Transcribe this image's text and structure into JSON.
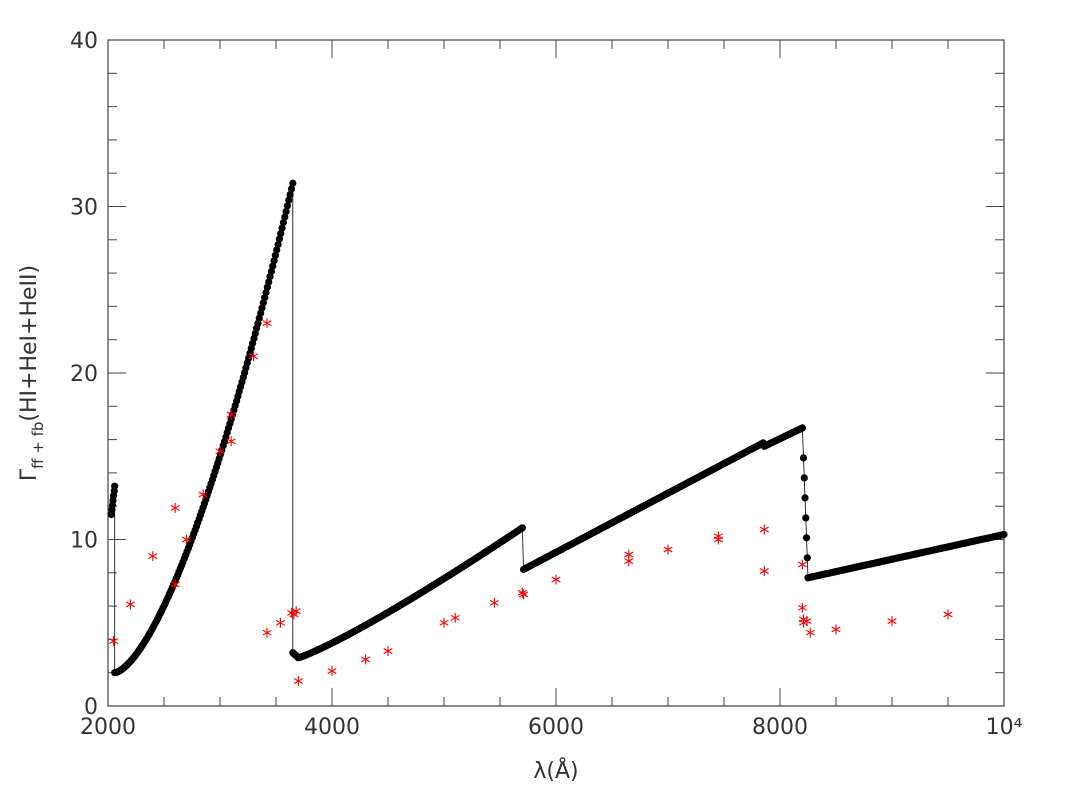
{
  "chart_data": {
    "type": "scatter",
    "title": "",
    "xlabel": "λ(Å)",
    "ylabel": "Γ_ff + fb(HI+HeI+HeII)",
    "ylabel_main": "Γ",
    "ylabel_sub": "ff + fb",
    "ylabel_rest": "(HI+HeI+HeII)",
    "xlim": [
      2000,
      10000
    ],
    "ylim": [
      0,
      40
    ],
    "grid": false,
    "x_ticks": [
      {
        "value": 2000,
        "label": "2000"
      },
      {
        "value": 4000,
        "label": "4000"
      },
      {
        "value": 6000,
        "label": "6000"
      },
      {
        "value": 8000,
        "label": "8000"
      },
      {
        "value": 10000,
        "label": "10⁴"
      }
    ],
    "y_ticks": [
      {
        "value": 0,
        "label": "0"
      },
      {
        "value": 10,
        "label": "10"
      },
      {
        "value": 20,
        "label": "20"
      },
      {
        "value": 30,
        "label": "30"
      },
      {
        "value": 40,
        "label": "40"
      }
    ],
    "colors": {
      "model": "#000000",
      "stars": "#ff0000",
      "axis": "#444444"
    },
    "series": [
      {
        "marker": "filled-circle-with-line",
        "segments": [
          {
            "x_start": 2030,
            "x_end": 2060,
            "y_start": 11.5,
            "y_end": 13.2,
            "power": 1
          },
          {
            "x_start": 2060,
            "x_end": 3650,
            "y_start": 2.0,
            "y_end": 31.4,
            "power": 1.55
          },
          {
            "x_start": 3650,
            "x_end": 3700,
            "y_start": 3.2,
            "y_end": 2.9,
            "power": 1
          },
          {
            "x_start": 3700,
            "x_end": 5700,
            "y_start": 2.9,
            "y_end": 10.7,
            "power": 1.15
          },
          {
            "x_start": 5710,
            "x_end": 7850,
            "y_start": 8.2,
            "y_end": 15.8,
            "power": 1
          },
          {
            "x_start": 7860,
            "x_end": 8200,
            "y_start": 15.6,
            "y_end": 16.7,
            "power": 1
          },
          {
            "x_start": 8210,
            "x_end": 8250,
            "y_start": 14.9,
            "y_end": 7.7,
            "power": 1
          },
          {
            "x_start": 8250,
            "x_end": 10000,
            "y_start": 7.7,
            "y_end": 10.3,
            "power": 1
          }
        ]
      },
      {
        "marker": "star",
        "points": [
          [
            2050,
            3.9
          ],
          [
            2200,
            6.1
          ],
          [
            2400,
            9.0
          ],
          [
            2600,
            7.3
          ],
          [
            2600,
            11.9
          ],
          [
            2700,
            10.0
          ],
          [
            2850,
            12.7
          ],
          [
            3000,
            15.3
          ],
          [
            3100,
            15.9
          ],
          [
            3100,
            17.5
          ],
          [
            3300,
            21.0
          ],
          [
            3420,
            23.0
          ],
          [
            3420,
            4.4
          ],
          [
            3540,
            5.0
          ],
          [
            3640,
            5.6
          ],
          [
            3660,
            5.5
          ],
          [
            3680,
            5.7
          ],
          [
            3700,
            1.5
          ],
          [
            4000,
            2.1
          ],
          [
            4300,
            2.8
          ],
          [
            4500,
            3.3
          ],
          [
            5000,
            5.0
          ],
          [
            5100,
            5.3
          ],
          [
            5450,
            6.2
          ],
          [
            5700,
            6.8
          ],
          [
            5710,
            6.7
          ],
          [
            6000,
            7.6
          ],
          [
            6650,
            8.7
          ],
          [
            6650,
            9.1
          ],
          [
            7000,
            9.4
          ],
          [
            7450,
            10.0
          ],
          [
            7450,
            10.2
          ],
          [
            7860,
            10.6
          ],
          [
            7860,
            8.1
          ],
          [
            8200,
            8.5
          ],
          [
            8200,
            5.9
          ],
          [
            8210,
            5.0
          ],
          [
            8210,
            5.2
          ],
          [
            8240,
            5.1
          ],
          [
            8270,
            4.4
          ],
          [
            8500,
            4.6
          ],
          [
            9000,
            5.1
          ],
          [
            9500,
            5.5
          ]
        ]
      }
    ]
  }
}
